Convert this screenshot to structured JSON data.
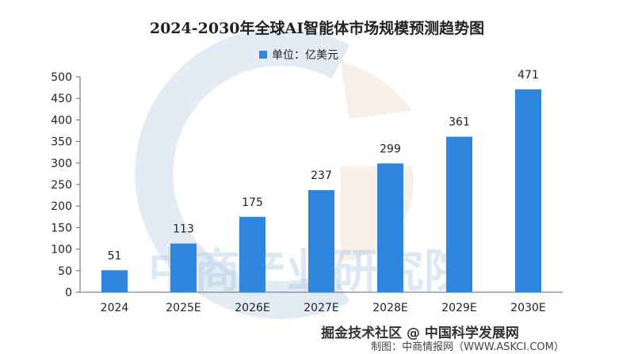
{
  "chart_data": {
    "type": "bar",
    "title": "2024-2030年全球AI智能体市场规模预测趋势图",
    "legend": {
      "label": "单位：亿美元",
      "position": "top-center",
      "color": "#2E86DE"
    },
    "categories": [
      "2024",
      "2025E",
      "2026E",
      "2027E",
      "2028E",
      "2029E",
      "2030E"
    ],
    "values": [
      51,
      113,
      175,
      237,
      299,
      361,
      471
    ],
    "value_labels": [
      "51",
      "113",
      "175",
      "237",
      "299",
      "361",
      "471"
    ],
    "ylim": [
      0,
      500
    ],
    "yticks": [
      0,
      50,
      100,
      150,
      200,
      250,
      300,
      350,
      400,
      450,
      500
    ],
    "ytick_labels": [
      "0",
      "50",
      "100",
      "150",
      "200",
      "250",
      "300",
      "350",
      "400",
      "450",
      "500"
    ],
    "grid": false,
    "bar_color": "#2E86DE",
    "watermark": "中商产业研究院",
    "source": "制图：中商情报网（WWW.ASKCI.COM）",
    "credit": "掘金技术社区 @ 中国科学发展网"
  }
}
